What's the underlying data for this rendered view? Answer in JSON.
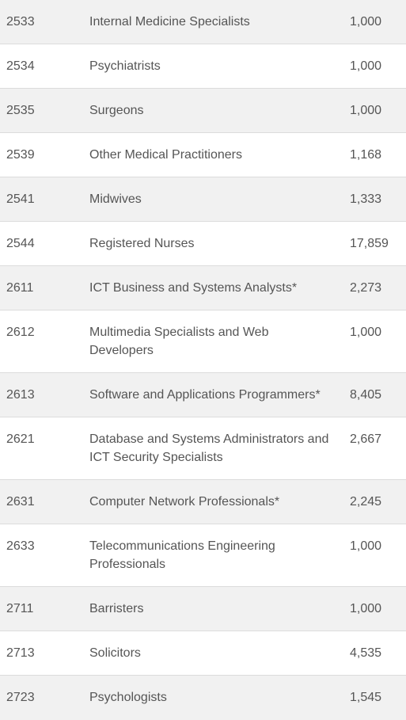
{
  "rows": [
    {
      "code": "2533",
      "occupation": "Internal Medicine Specialists",
      "value": "1,000"
    },
    {
      "code": "2534",
      "occupation": "Psychiatrists",
      "value": "1,000"
    },
    {
      "code": "2535",
      "occupation": "Surgeons",
      "value": "1,000"
    },
    {
      "code": "2539",
      "occupation": "Other Medical Practitioners",
      "value": "1,168"
    },
    {
      "code": "2541",
      "occupation": "Midwives",
      "value": "1,333"
    },
    {
      "code": "2544",
      "occupation": "Registered Nurses",
      "value": "17,859"
    },
    {
      "code": "2611",
      "occupation": "ICT Business and Systems Analysts*",
      "value": "2,273"
    },
    {
      "code": "2612",
      "occupation": "Multimedia Specialists and Web Developers",
      "value": "1,000"
    },
    {
      "code": "2613",
      "occupation": "Software and Applications Programmers*",
      "value": "8,405"
    },
    {
      "code": "2621",
      "occupation": "Database and Systems Administrators and ICT Security Specialists",
      "value": "2,667"
    },
    {
      "code": "2631",
      "occupation": "Computer Network Professionals*",
      "value": "2,245"
    },
    {
      "code": "2633",
      "occupation": "Telecommunications Engineering Professionals",
      "value": "1,000"
    },
    {
      "code": "2711",
      "occupation": "Barristers",
      "value": "1,000"
    },
    {
      "code": "2713",
      "occupation": "Solicitors",
      "value": "4,535"
    },
    {
      "code": "2723",
      "occupation": "Psychologists",
      "value": "1,545"
    }
  ]
}
